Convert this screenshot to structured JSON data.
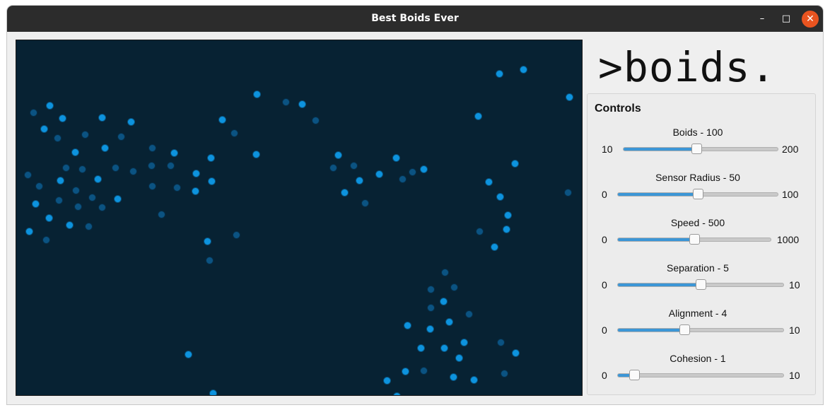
{
  "window": {
    "title": "Best Boids Ever"
  },
  "titlebar": {
    "minimize": "–",
    "maximize": "□",
    "close": "✕"
  },
  "colors": {
    "canvas_bg": "#072233",
    "boid_light": "#0d93de",
    "boid_dark": "#0b5382",
    "accent": "#3c96d6",
    "close_button": "#e95420"
  },
  "logo": ">boids.",
  "controls": {
    "title": "Controls",
    "sliders": [
      {
        "label": "Boids - 100",
        "min": "10",
        "max": "200",
        "value": 100,
        "min_value": 10,
        "max_value": 200
      },
      {
        "label": "Sensor Radius - 50",
        "min": "0",
        "max": "100",
        "value": 50,
        "min_value": 0,
        "max_value": 100
      },
      {
        "label": "Speed - 500",
        "min": "0",
        "max": "1000",
        "value": 500,
        "min_value": 0,
        "max_value": 1000
      },
      {
        "label": "Separation - 5",
        "min": "0",
        "max": "10",
        "value": 5,
        "min_value": 0,
        "max_value": 10
      },
      {
        "label": "Alignment - 4",
        "min": "0",
        "max": "10",
        "value": 4,
        "min_value": 0,
        "max_value": 10
      },
      {
        "label": "Cohesion - 1",
        "min": "0",
        "max": "10",
        "value": 1,
        "min_value": 0,
        "max_value": 10
      }
    ]
  }
}
